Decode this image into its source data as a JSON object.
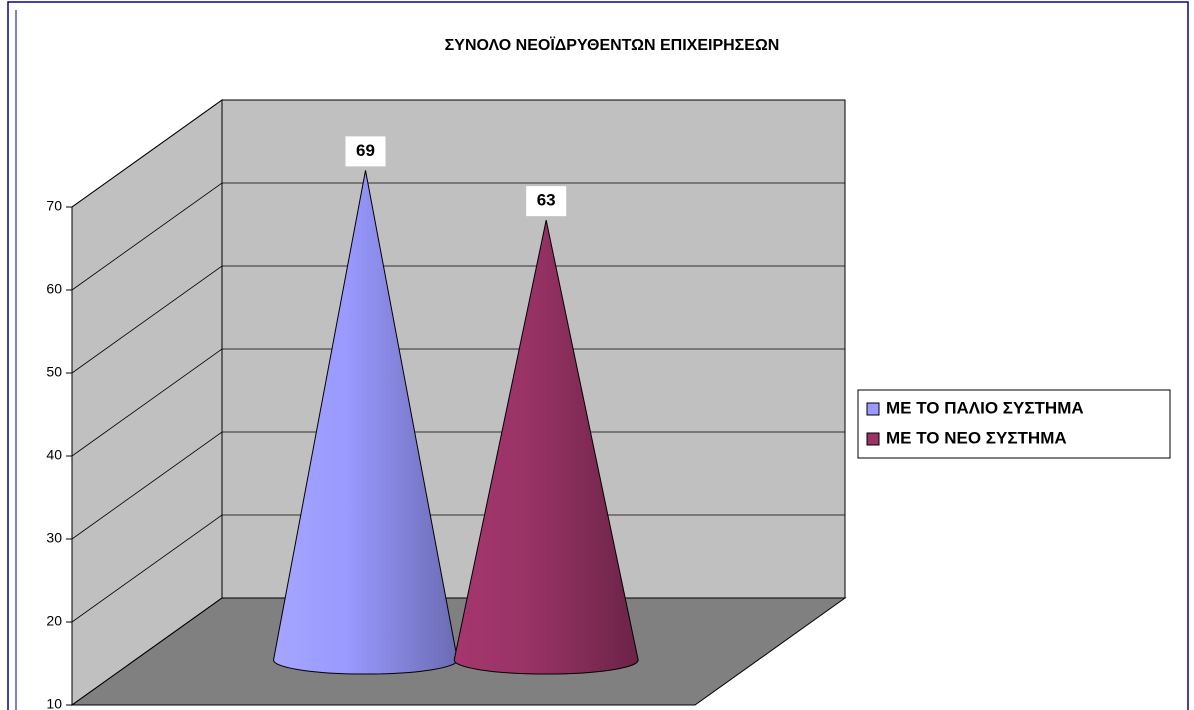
{
  "chart_data": {
    "type": "cone3d",
    "title": "ΣΥΝΟΛΟ ΝΕΟΪΔΡΥΘΕΝΤΩΝ ΕΠΙΧΕΙΡΗΣΕΩΝ",
    "series": [
      {
        "name": "ΜΕ ΤΟ ΠΑΛΙΟ ΣΥΣΤΗΜΑ",
        "color": "#9999ff",
        "values": [
          69
        ]
      },
      {
        "name": "ΜΕ ΤΟ ΝΕΟ ΣΥΣΤΗΜΑ",
        "color": "#993366",
        "values": [
          63
        ]
      }
    ],
    "ylim": [
      10,
      70
    ],
    "yticks": [
      10,
      20,
      30,
      40,
      50,
      60,
      70
    ],
    "grid": true,
    "legend": "right"
  }
}
